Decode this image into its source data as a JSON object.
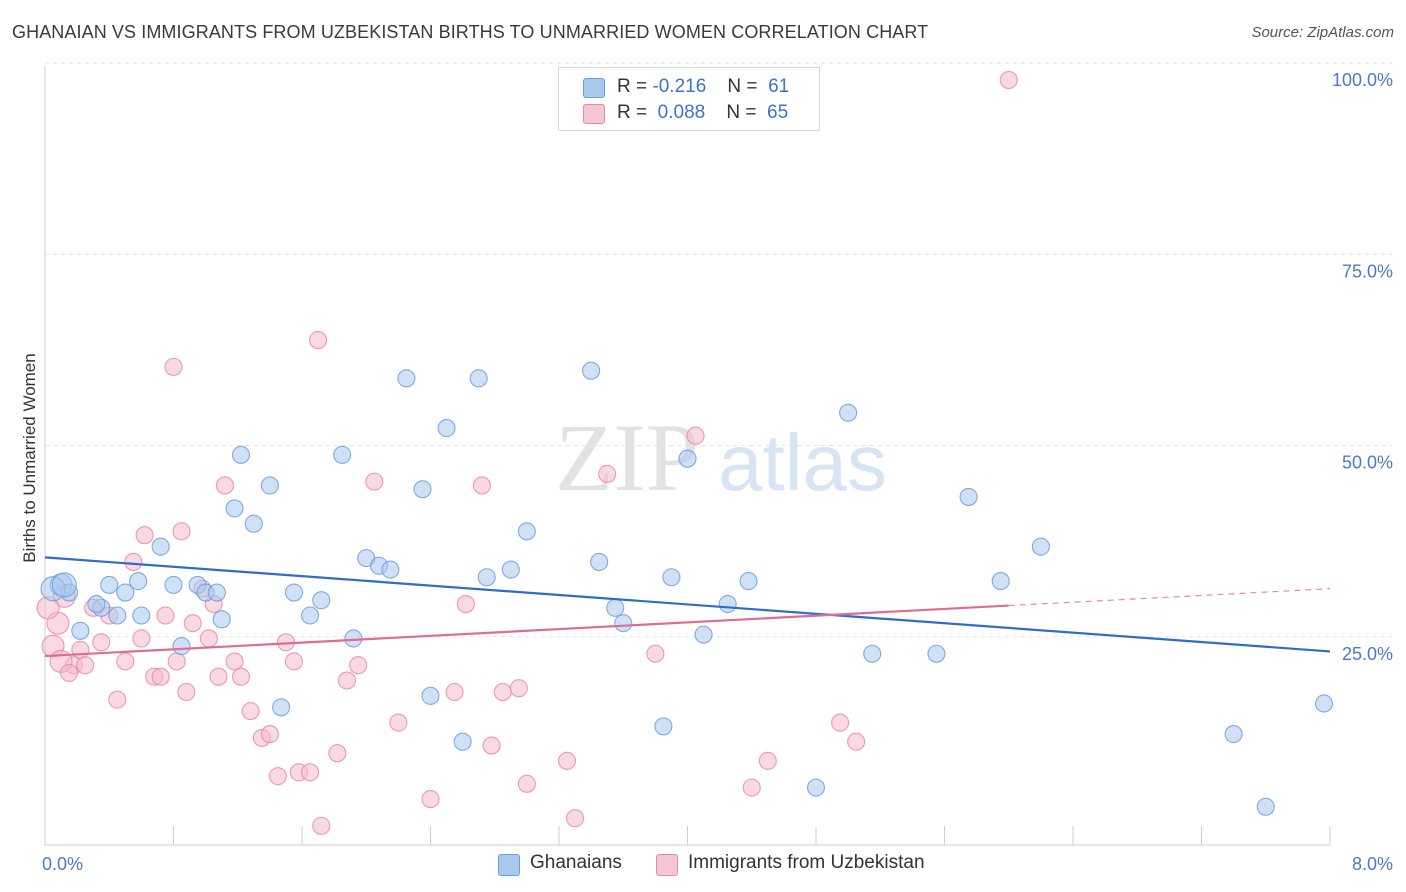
{
  "title": "GHANAIAN VS IMMIGRANTS FROM UZBEKISTAN BIRTHS TO UNMARRIED WOMEN CORRELATION CHART",
  "source": "Source: ZipAtlas.com",
  "watermark": {
    "zip": "ZIP",
    "atlas": "atlas"
  },
  "legend_top": {
    "rows": [
      {
        "r_label": "R =",
        "r_value": "-0.216",
        "n_label": "N =",
        "n_value": "61",
        "color": "#a9c8ee"
      },
      {
        "r_label": "R =",
        "r_value": "0.088",
        "n_label": "N =",
        "n_value": "65",
        "color": "#f5b9cc"
      }
    ]
  },
  "legend_bottom": [
    {
      "label": "Ghanaians",
      "color": "#a9c8ee"
    },
    {
      "label": "Immigrants from Uzbekistan",
      "color": "#f5b9cc"
    }
  ],
  "chart_data": {
    "type": "scatter",
    "title": "GHANAIAN VS IMMIGRANTS FROM UZBEKISTAN BIRTHS TO UNMARRIED WOMEN CORRELATION CHART",
    "xlabel": "",
    "ylabel": "Births to Unmarried Women",
    "xlim": [
      0,
      8
    ],
    "ylim": [
      0,
      100
    ],
    "x_tick_labels": [
      "0.0%",
      "8.0%"
    ],
    "y_tick_labels": [
      "25.0%",
      "50.0%",
      "75.0%",
      "100.0%"
    ],
    "y_ticks": [
      25,
      50,
      75,
      100
    ],
    "series": [
      {
        "name": "Ghanaians",
        "color": "#6a9ee0",
        "fill": "#a9c8ee",
        "trend": {
          "x": [
            0,
            8
          ],
          "y": [
            37.6,
            25.3
          ]
        },
        "points": [
          [
            0.1,
            34.0
          ],
          [
            0.15,
            33.0
          ],
          [
            0.35,
            31.0
          ],
          [
            0.22,
            28.0
          ],
          [
            0.32,
            31.5
          ],
          [
            0.4,
            34.0
          ],
          [
            0.45,
            30.0
          ],
          [
            0.5,
            33.0
          ],
          [
            0.58,
            34.5
          ],
          [
            0.6,
            30.0
          ],
          [
            0.72,
            39.0
          ],
          [
            0.8,
            34.0
          ],
          [
            0.85,
            26.0
          ],
          [
            0.95,
            34.0
          ],
          [
            1.0,
            33.0
          ],
          [
            1.07,
            33.0
          ],
          [
            1.1,
            29.5
          ],
          [
            1.18,
            44.0
          ],
          [
            1.22,
            51.0
          ],
          [
            1.3,
            42.0
          ],
          [
            1.4,
            47.0
          ],
          [
            1.47,
            18.0
          ],
          [
            1.55,
            33.0
          ],
          [
            1.65,
            30.0
          ],
          [
            1.72,
            32.0
          ],
          [
            1.85,
            51.0
          ],
          [
            1.92,
            27.0
          ],
          [
            2.0,
            37.5
          ],
          [
            2.08,
            36.5
          ],
          [
            2.15,
            36.0
          ],
          [
            2.25,
            61.0
          ],
          [
            2.35,
            46.5
          ],
          [
            2.4,
            19.5
          ],
          [
            2.5,
            54.5
          ],
          [
            2.6,
            13.5
          ],
          [
            2.7,
            61.0
          ],
          [
            2.75,
            35.0
          ],
          [
            2.9,
            36.0
          ],
          [
            3.0,
            41.0
          ],
          [
            3.4,
            62.0
          ],
          [
            3.45,
            37.0
          ],
          [
            3.55,
            31.0
          ],
          [
            3.6,
            29.0
          ],
          [
            3.85,
            15.5
          ],
          [
            3.9,
            35.0
          ],
          [
            4.0,
            50.5
          ],
          [
            4.1,
            27.5
          ],
          [
            4.25,
            31.5
          ],
          [
            4.38,
            34.5
          ],
          [
            4.8,
            7.5
          ],
          [
            5.0,
            56.5
          ],
          [
            5.15,
            25.0
          ],
          [
            5.55,
            25.0
          ],
          [
            5.75,
            45.5
          ],
          [
            5.95,
            34.5
          ],
          [
            6.2,
            39.0
          ],
          [
            7.4,
            14.5
          ],
          [
            7.6,
            5.0
          ],
          [
            8.1,
            18.5
          ],
          [
            0.05,
            33.5
          ],
          [
            0.12,
            34.0
          ]
        ]
      },
      {
        "name": "Immigrants from Uzbekistan",
        "color": "#e889a7",
        "fill": "#f5b9cc",
        "trend": {
          "x": [
            0,
            6.0
          ],
          "y": [
            24.7,
            31.3
          ]
        },
        "trend_dashed": {
          "x": [
            6.0,
            8
          ],
          "y": [
            31.3,
            33.5
          ]
        },
        "points": [
          [
            0.05,
            26.0
          ],
          [
            0.08,
            29.0
          ],
          [
            0.12,
            32.5
          ],
          [
            0.18,
            23.5
          ],
          [
            0.22,
            25.5
          ],
          [
            0.25,
            23.5
          ],
          [
            0.3,
            31.0
          ],
          [
            0.35,
            26.5
          ],
          [
            0.4,
            30.0
          ],
          [
            0.45,
            19.0
          ],
          [
            0.5,
            24.0
          ],
          [
            0.55,
            37.0
          ],
          [
            0.6,
            27.0
          ],
          [
            0.62,
            40.5
          ],
          [
            0.68,
            22.0
          ],
          [
            0.72,
            22.0
          ],
          [
            0.75,
            30.0
          ],
          [
            0.8,
            62.5
          ],
          [
            0.82,
            24.0
          ],
          [
            0.85,
            41.0
          ],
          [
            0.88,
            20.0
          ],
          [
            0.92,
            29.0
          ],
          [
            0.98,
            33.5
          ],
          [
            1.02,
            27.0
          ],
          [
            1.05,
            31.5
          ],
          [
            1.08,
            22.0
          ],
          [
            1.12,
            47.0
          ],
          [
            1.18,
            24.0
          ],
          [
            1.22,
            22.0
          ],
          [
            1.28,
            17.5
          ],
          [
            1.35,
            14.0
          ],
          [
            1.4,
            14.5
          ],
          [
            1.45,
            9.0
          ],
          [
            1.5,
            26.5
          ],
          [
            1.55,
            24.0
          ],
          [
            1.58,
            9.5
          ],
          [
            1.65,
            9.5
          ],
          [
            1.7,
            66.0
          ],
          [
            1.72,
            2.5
          ],
          [
            1.82,
            12.0
          ],
          [
            1.88,
            21.5
          ],
          [
            1.95,
            23.5
          ],
          [
            2.05,
            47.5
          ],
          [
            2.2,
            16.0
          ],
          [
            2.4,
            6.0
          ],
          [
            2.55,
            20.0
          ],
          [
            2.62,
            31.5
          ],
          [
            2.72,
            47.0
          ],
          [
            2.78,
            13.0
          ],
          [
            2.85,
            20.0
          ],
          [
            2.95,
            20.5
          ],
          [
            3.0,
            8.0
          ],
          [
            3.25,
            11.0
          ],
          [
            3.3,
            3.5
          ],
          [
            3.5,
            48.5
          ],
          [
            3.8,
            25.0
          ],
          [
            4.05,
            53.5
          ],
          [
            4.4,
            7.5
          ],
          [
            4.5,
            11.0
          ],
          [
            4.95,
            16.0
          ],
          [
            5.05,
            13.5
          ],
          [
            6.0,
            100.0
          ],
          [
            0.02,
            31.0
          ],
          [
            0.1,
            24.0
          ],
          [
            0.15,
            22.5
          ]
        ]
      }
    ]
  }
}
